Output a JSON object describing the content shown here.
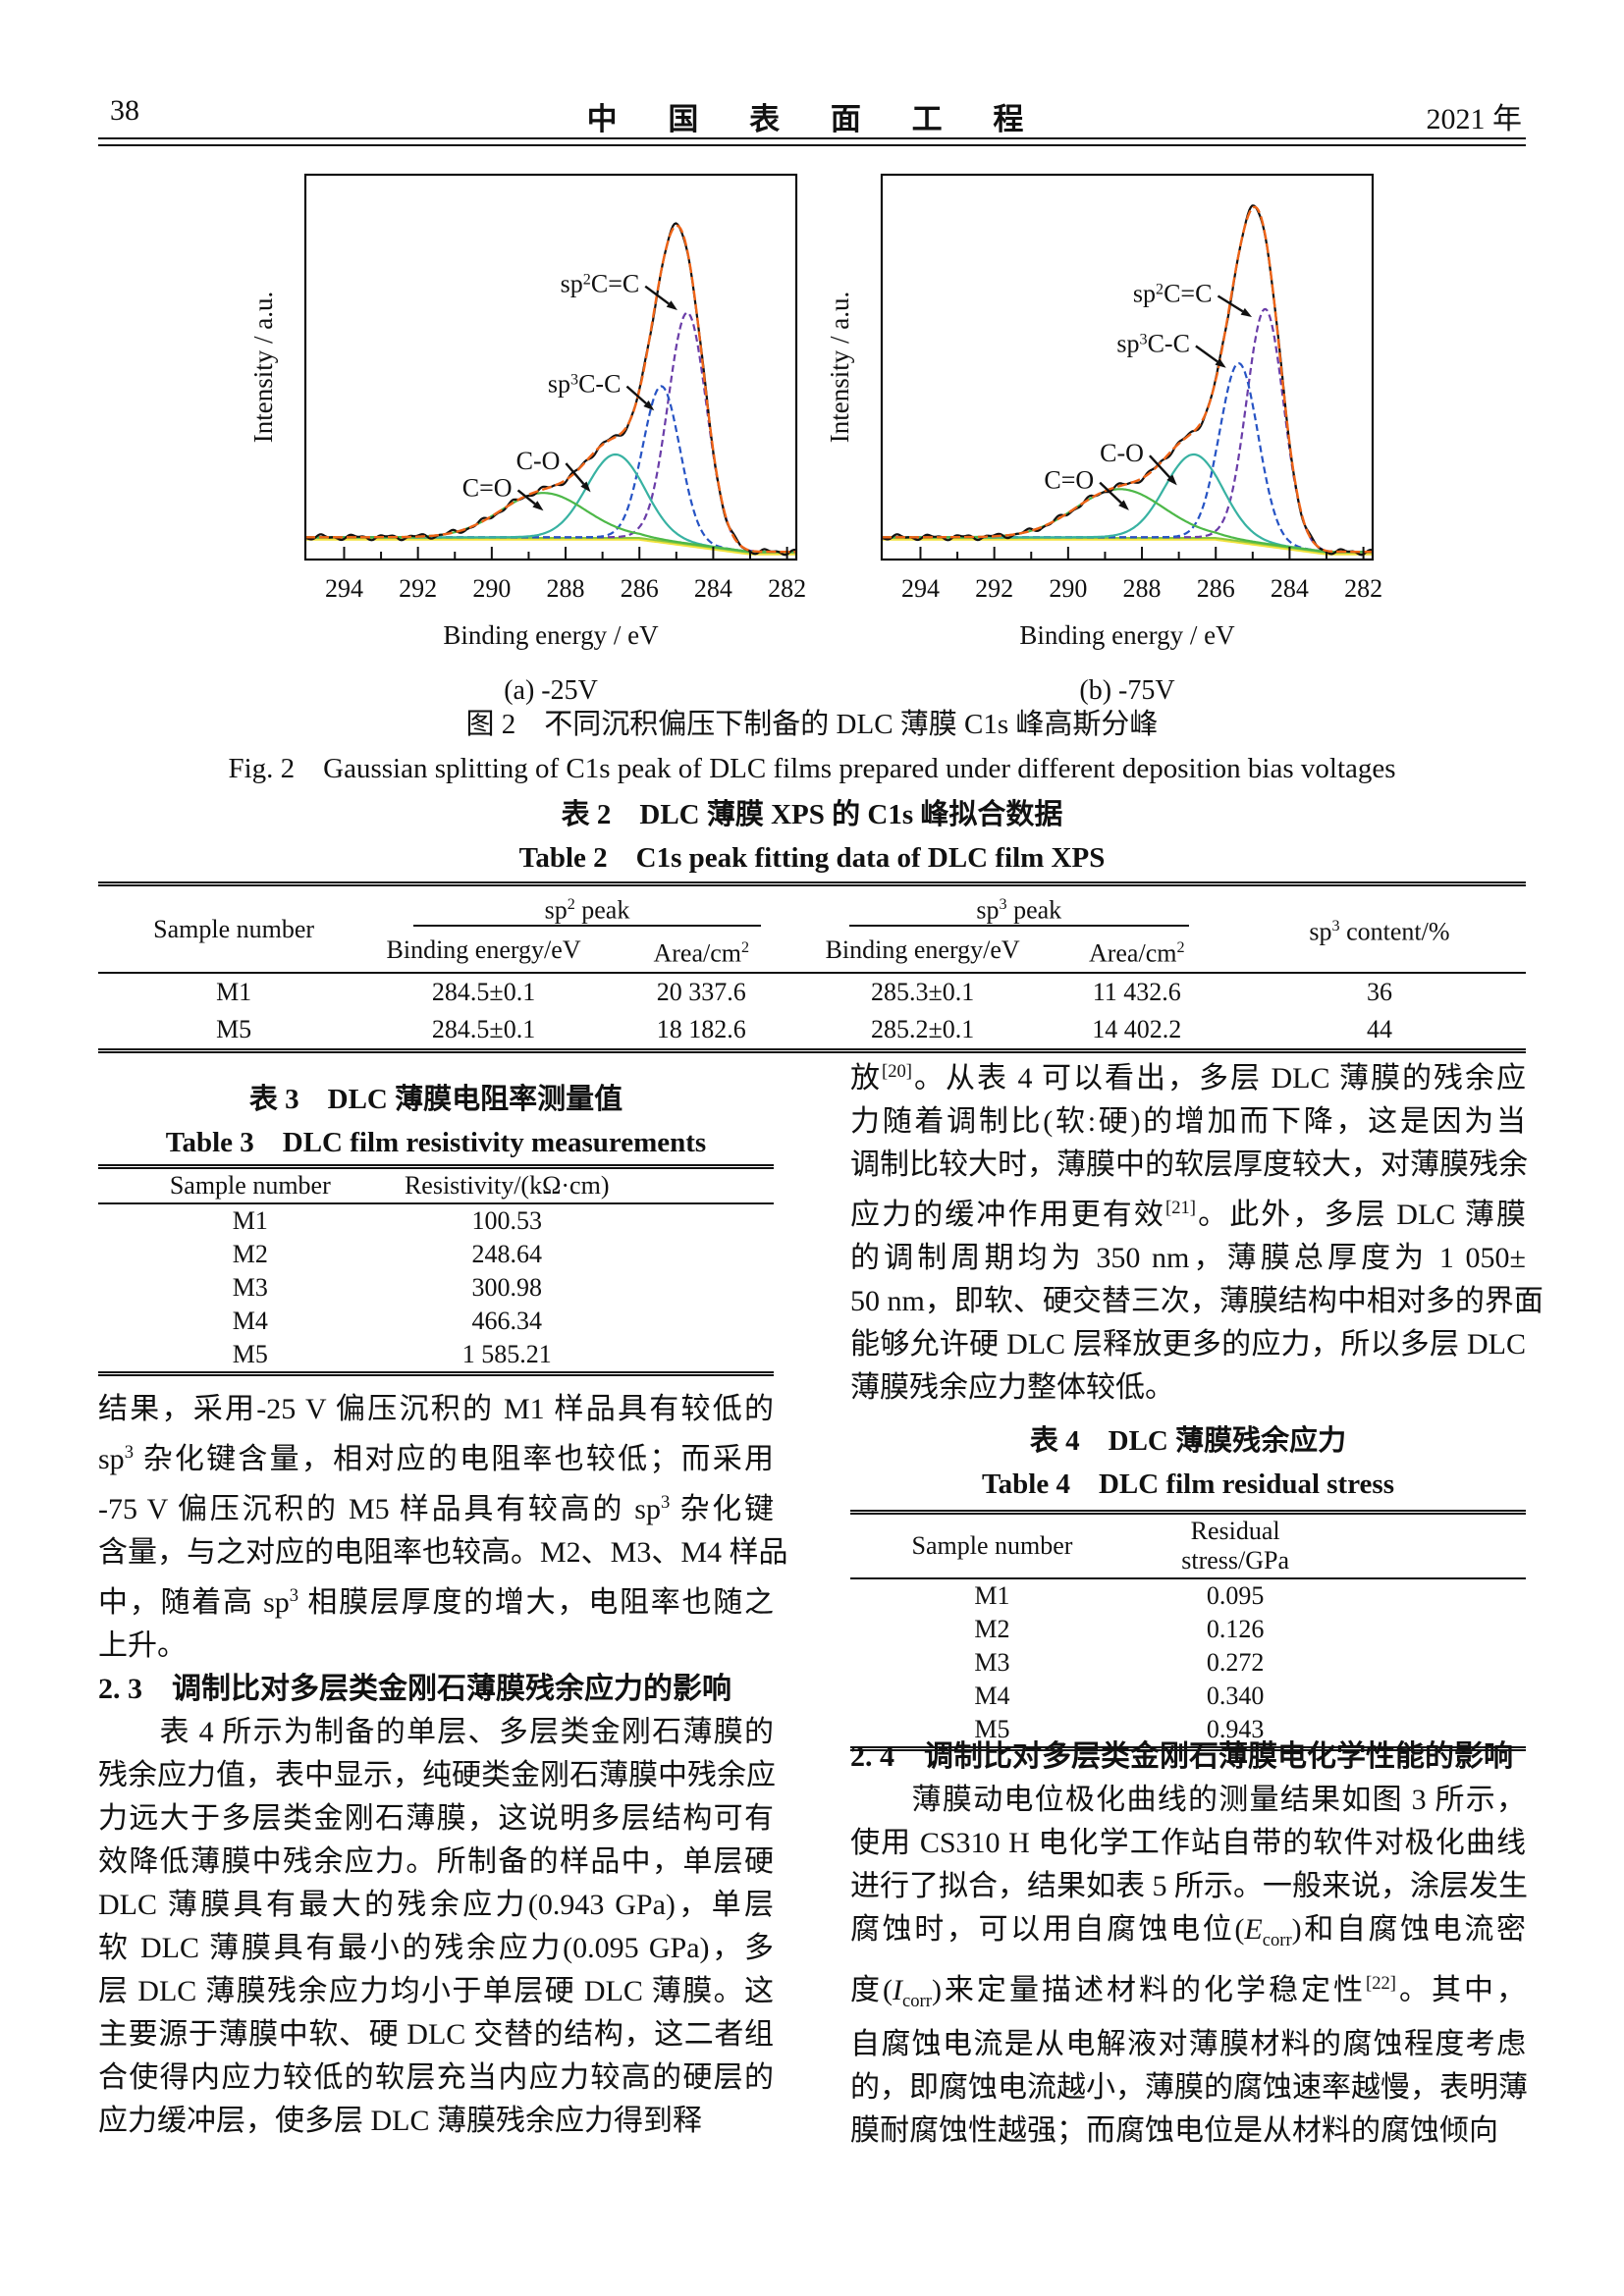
{
  "page": {
    "number": "38",
    "journal_title": "中 国 表 面 工 程",
    "year": "2021 年"
  },
  "figure": {
    "caption_cn": "图 2　不同沉积偏压下制备的 DLC 薄膜 C1s 峰高斯分峰",
    "caption_en": "Fig. 2　Gaussian splitting of C1s peak of DLC films prepared under different deposition bias voltages",
    "chart_data": [
      {
        "type": "line",
        "subplot": "a",
        "bias_label": "(a) -25V",
        "xlabel": "Binding energy / eV",
        "ylabel": "Intensity / a.u.",
        "x_ticks": [
          294,
          292,
          290,
          288,
          286,
          284,
          282
        ],
        "x_range": [
          295.05,
          281.75
        ],
        "baseline": 0.058,
        "envelope": {
          "raw_color": "#111111",
          "fit_color": "#ef6417",
          "approx_peak_center": 284.9,
          "approx_peak_height": 0.86
        },
        "components": [
          {
            "name": "sp2-CC",
            "label": "sp^{2}C=C",
            "color": "#6a3da8",
            "dashed": true,
            "center": 284.7,
            "sigma": 0.52,
            "height": 0.6,
            "label_anchor": [
              286.0,
              0.715
            ],
            "arrow_to": [
              284.97,
              0.648
            ]
          },
          {
            "name": "sp3-CC",
            "label": "sp^{3}C-C",
            "color": "#2653c4",
            "dashed": true,
            "center": 285.4,
            "sigma": 0.5,
            "height": 0.4,
            "label_anchor": [
              286.5,
              0.455
            ],
            "arrow_to": [
              285.6,
              0.387
            ]
          },
          {
            "name": "C-O",
            "label": "C-O",
            "color": "#38b2a2",
            "dashed": false,
            "center": 286.65,
            "sigma": 0.78,
            "height": 0.215,
            "label_anchor": [
              288.15,
              0.255
            ],
            "arrow_to": [
              287.32,
              0.175
            ]
          },
          {
            "name": "C=O",
            "label": "C=O",
            "color": "#4db848",
            "dashed": false,
            "center": 288.6,
            "sigma": 1.15,
            "height": 0.115,
            "label_anchor": [
              289.45,
              0.185
            ],
            "arrow_to": [
              288.6,
              0.127
            ]
          }
        ],
        "baseline_colors": {
          "flat": "#f2e23c",
          "slope": "#8cc63f"
        }
      },
      {
        "type": "line",
        "subplot": "b",
        "bias_label": "(b) -75V",
        "xlabel": "Binding energy / eV",
        "ylabel": "Intensity / a.u.",
        "x_ticks": [
          294,
          292,
          290,
          288,
          286,
          284,
          282
        ],
        "x_range": [
          295.05,
          281.75
        ],
        "baseline": 0.058,
        "envelope": {
          "raw_color": "#111111",
          "fit_color": "#ef6417",
          "approx_peak_center": 284.9,
          "approx_peak_height": 0.92
        },
        "components": [
          {
            "name": "sp2-CC",
            "label": "sp^{2}C=C",
            "color": "#6a3da8",
            "dashed": true,
            "center": 284.66,
            "sigma": 0.5,
            "height": 0.61,
            "label_anchor": [
              286.1,
              0.69
            ],
            "arrow_to": [
              285.02,
              0.63
            ]
          },
          {
            "name": "sp3-CC",
            "label": "sp^{3}C-C",
            "color": "#2653c4",
            "dashed": true,
            "center": 285.37,
            "sigma": 0.52,
            "height": 0.46,
            "label_anchor": [
              286.7,
              0.56
            ],
            "arrow_to": [
              285.72,
              0.498
            ]
          },
          {
            "name": "C-O",
            "label": "C-O",
            "color": "#38b2a2",
            "dashed": false,
            "center": 286.6,
            "sigma": 0.78,
            "height": 0.215,
            "label_anchor": [
              287.95,
              0.275
            ],
            "arrow_to": [
              287.05,
              0.193
            ]
          },
          {
            "name": "C=O",
            "label": "C=O",
            "color": "#4db848",
            "dashed": false,
            "center": 288.6,
            "sigma": 1.2,
            "height": 0.125,
            "label_anchor": [
              289.3,
              0.205
            ],
            "arrow_to": [
              288.35,
              0.128
            ]
          }
        ],
        "baseline_colors": {
          "flat": "#f2e23c",
          "slope": "#8cc63f"
        }
      }
    ]
  },
  "table2": {
    "title_cn": "表 2　DLC 薄膜 XPS 的 C1s 峰拟合数据",
    "title_en": "Table 2　C1s peak fitting data of DLC film XPS",
    "col_sample": "Sample number",
    "group_sp2": "sp^{2} peak",
    "group_sp3": "sp^{3} peak",
    "col_be": "Binding energy/eV",
    "col_area": "Area/cm^{2}",
    "col_content": "sp^{3} content/%",
    "rows": [
      [
        "M1",
        "284.5±0.1",
        "20 337.6",
        "285.3±0.1",
        "11 432.6",
        "36"
      ],
      [
        "M5",
        "284.5±0.1",
        "18 182.6",
        "285.2±0.1",
        "14 402.2",
        "44"
      ]
    ]
  },
  "table3": {
    "title_cn": "表 3　DLC 薄膜电阻率测量值",
    "title_en": "Table 3　DLC film resistivity measurements",
    "col_sample": "Sample number",
    "col_value": "Resistivity/(kΩ·cm)",
    "rows": [
      [
        "M1",
        "100.53"
      ],
      [
        "M2",
        "248.64"
      ],
      [
        "M3",
        "300.98"
      ],
      [
        "M4",
        "466.34"
      ],
      [
        "M5",
        "1 585.21"
      ]
    ]
  },
  "table4": {
    "title_cn": "表 4　DLC 薄膜残余应力",
    "title_en": "Table 4　DLC film residual stress",
    "col_sample": "Sample number",
    "col_value": "Residual stress/GPa",
    "rows": [
      [
        "M1",
        "0.095"
      ],
      [
        "M2",
        "0.126"
      ],
      [
        "M3",
        "0.272"
      ],
      [
        "M4",
        "0.340"
      ],
      [
        "M5",
        "0.943"
      ]
    ]
  },
  "left_column": {
    "lines": [
      {
        "text": "结果，采用-25 V 偏压沉积的 M1 样品具有较低的"
      },
      {
        "text": "sp^{3} 杂化键含量，相对应的电阻率也较低；而采用"
      },
      {
        "text": "-75 V 偏压沉积的 M5 样品具有较高的 sp^{3} 杂化键"
      },
      {
        "text": "含量，与之对应的电阻率也较高。M2、M3、M4 样品"
      },
      {
        "text": "中，随着高 sp^{3} 相膜层厚度的增大，电阻率也随之"
      },
      {
        "text": "上升。",
        "end": true
      },
      {
        "text": "2. 3　调制比对多层类金刚石薄膜残余应力的影响",
        "heading": true
      },
      {
        "text": "　　表 4 所示为制备的单层、多层类金刚石薄膜的"
      },
      {
        "text": "残余应力值，表中显示，纯硬类金刚石薄膜中残余应"
      },
      {
        "text": "力远大于多层类金刚石薄膜，这说明多层结构可有"
      },
      {
        "text": "效降低薄膜中残余应力。所制备的样品中，单层硬"
      },
      {
        "text": "DLC 薄膜具有最大的残余应力(0.943 GPa)，单层"
      },
      {
        "text": "软 DLC 薄膜具有最小的残余应力(0.095 GPa)，多"
      },
      {
        "text": "层 DLC 薄膜残余应力均小于单层硬 DLC 薄膜。这"
      },
      {
        "text": "主要源于薄膜中软、硬 DLC 交替的结构，这二者组"
      },
      {
        "text": "合使得内应力较低的软层充当内应力较高的硬层的"
      },
      {
        "text": "应力缓冲层，使多层 DLC 薄膜残余应力得到释",
        "end": true
      }
    ]
  },
  "right_column": {
    "para1": [
      {
        "text": "放^{[20]}。从表 4 可以看出，多层 DLC 薄膜的残余应"
      },
      {
        "text": "力随着调制比(软:硬)的增加而下降，这是因为当"
      },
      {
        "text": "调制比较大时，薄膜中的软层厚度较大，对薄膜残余"
      },
      {
        "text": "应力的缓冲作用更有效^{[21]}。此外，多层 DLC 薄膜"
      },
      {
        "text": "的调制周期均为 350 nm，薄膜总厚度为 1 050±"
      },
      {
        "text": "50 nm，即软、硬交替三次，薄膜结构中相对多的界面"
      },
      {
        "text": "能够允许硬 DLC 层释放更多的应力，所以多层 DLC"
      },
      {
        "text": "薄膜残余应力整体较低。",
        "end": true
      }
    ],
    "para2": [
      {
        "text": "2. 4　调制比对多层类金刚石薄膜电化学性能的影响",
        "heading": true
      },
      {
        "text": "　　薄膜动电位极化曲线的测量结果如图 3 所示，"
      },
      {
        "text": "使用 CS310 H 电化学工作站自带的软件对极化曲线"
      },
      {
        "text": "进行了拟合，结果如表 5 所示。一般来说，涂层发生"
      },
      {
        "text": "腐蚀时，可以用自腐蚀电位(~{E}_{corr})和自腐蚀电流密"
      },
      {
        "text": "度(~{I}_{corr})来定量描述材料的化学稳定性^{[22]}。其中，"
      },
      {
        "text": "自腐蚀电流是从电解液对薄膜材料的腐蚀程度考虑"
      },
      {
        "text": "的，即腐蚀电流越小，薄膜的腐蚀速率越慢，表明薄"
      },
      {
        "text": "膜耐腐蚀性越强；而腐蚀电位是从材料的腐蚀倾向",
        "end": true
      }
    ]
  }
}
